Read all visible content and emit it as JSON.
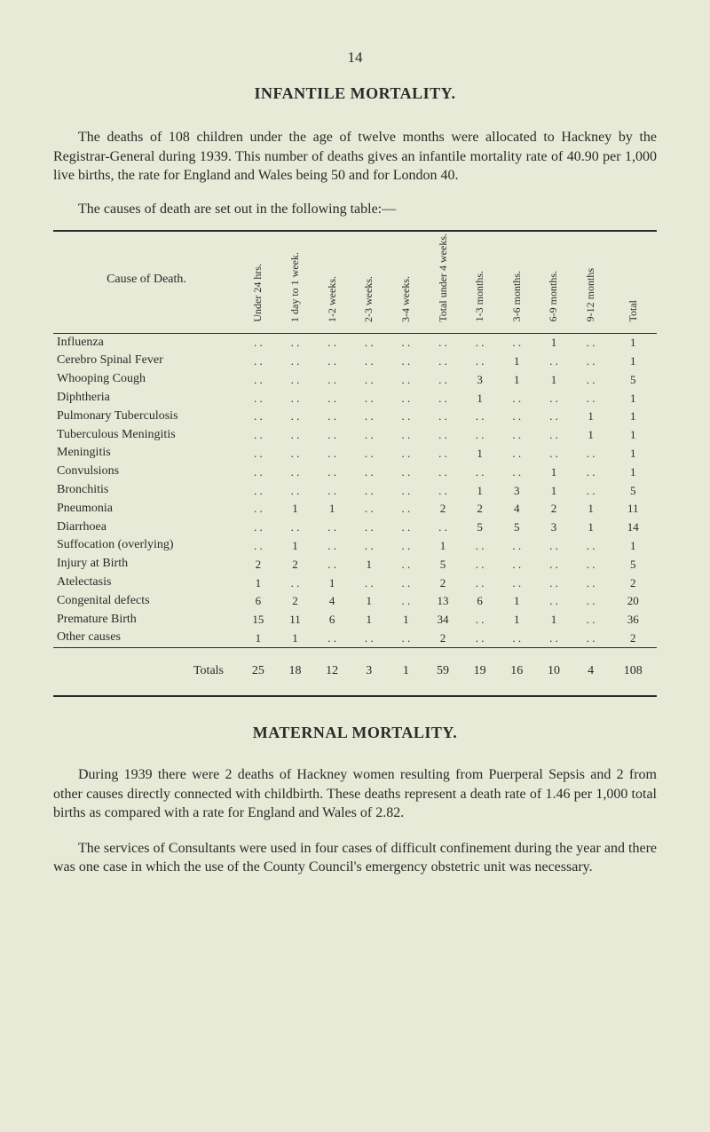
{
  "page_number": "14",
  "title": "INFANTILE MORTALITY.",
  "intro_para": "The deaths of 108 children under the age of twelve months were allocated to Hackney by the Registrar-General during 1939. This number of deaths gives an infantile mortality rate of 40.90 per 1,000 live births, the rate for England and Wales being 50 and for London 40.",
  "table_lead": "The causes of death are set out in the following table:—",
  "table": {
    "type": "table",
    "background_color": "#e8ead8",
    "border_color": "#2a2a28",
    "font_size_body": 13,
    "font_size_header": 12,
    "placeholder": ". .",
    "columns": [
      "Cause of Death.",
      "Under 24 hrs.",
      "1 day to 1 week.",
      "1-2 weeks.",
      "2-3 weeks.",
      "3-4 weeks.",
      "Total under 4 weeks.",
      "1-3 months.",
      "3-6 months.",
      "6-9 months.",
      "9-12 months",
      "Total"
    ],
    "rows": [
      {
        "cause": "Influenza",
        "v": [
          "",
          "",
          "",
          "",
          "",
          "",
          "",
          "",
          "1",
          "",
          "1"
        ]
      },
      {
        "cause": "Cerebro Spinal Fever",
        "v": [
          "",
          "",
          "",
          "",
          "",
          "",
          "",
          "1",
          "",
          "",
          "1"
        ]
      },
      {
        "cause": "Whooping Cough",
        "v": [
          "",
          "",
          "",
          "",
          "",
          "",
          "3",
          "1",
          "1",
          "",
          "5"
        ]
      },
      {
        "cause": "Diphtheria",
        "v": [
          "",
          "",
          "",
          "",
          "",
          "",
          "1",
          "",
          "",
          "",
          "1"
        ]
      },
      {
        "cause": "Pulmonary Tuberculosis",
        "v": [
          "",
          "",
          "",
          "",
          "",
          "",
          "",
          "",
          "",
          "1",
          "1"
        ]
      },
      {
        "cause": "Tuberculous Meningitis",
        "v": [
          "",
          "",
          "",
          "",
          "",
          "",
          "",
          "",
          "",
          "1",
          "1"
        ]
      },
      {
        "cause": "Meningitis",
        "v": [
          "",
          "",
          "",
          "",
          "",
          "",
          "1",
          "",
          "",
          "",
          "1"
        ]
      },
      {
        "cause": "Convulsions",
        "v": [
          "",
          "",
          "",
          "",
          "",
          "",
          "",
          "",
          "1",
          "",
          "1"
        ]
      },
      {
        "cause": "Bronchitis",
        "v": [
          "",
          "",
          "",
          "",
          "",
          "",
          "1",
          "3",
          "1",
          "",
          "5"
        ]
      },
      {
        "cause": "Pneumonia",
        "v": [
          "",
          "1",
          "1",
          "",
          "",
          "2",
          "2",
          "4",
          "2",
          "1",
          "11"
        ]
      },
      {
        "cause": "Diarrhoea",
        "v": [
          "",
          "",
          "",
          "",
          "",
          "",
          "5",
          "5",
          "3",
          "1",
          "14"
        ]
      },
      {
        "cause": "Suffocation (overlying)",
        "v": [
          "",
          "1",
          "",
          "",
          "",
          "1",
          "",
          "",
          "",
          "",
          "1"
        ]
      },
      {
        "cause": "Injury at Birth",
        "v": [
          "2",
          "2",
          "",
          "1",
          "",
          "5",
          "",
          "",
          "",
          "",
          "5"
        ]
      },
      {
        "cause": "Atelectasis",
        "v": [
          "1",
          "",
          "1",
          "",
          "",
          "2",
          "",
          "",
          "",
          "",
          "2"
        ]
      },
      {
        "cause": "Congenital defects",
        "v": [
          "6",
          "2",
          "4",
          "1",
          "",
          "13",
          "6",
          "1",
          "",
          "",
          "20"
        ]
      },
      {
        "cause": "Premature Birth",
        "v": [
          "15",
          "11",
          "6",
          "1",
          "1",
          "34",
          "",
          "1",
          "1",
          "",
          "36"
        ]
      },
      {
        "cause": "Other causes",
        "v": [
          "1",
          "1",
          "",
          "",
          "",
          "2",
          "",
          "",
          "",
          "",
          "2"
        ]
      }
    ],
    "totals": {
      "label": "Totals",
      "v": [
        "25",
        "18",
        "12",
        "3",
        "1",
        "59",
        "19",
        "16",
        "10",
        "4",
        "108"
      ]
    }
  },
  "sub_title": "MATERNAL MORTALITY.",
  "maternal_p1": "During 1939 there were 2 deaths of Hackney women resulting from Puerperal Sepsis and 2 from other causes directly connected with childbirth. These deaths represent a death rate of 1.46 per 1,000 total births as compared with a rate for England and Wales of 2.82.",
  "maternal_p2": "The services of Consultants were used in four cases of difficult confinement during the year and there was one case in which the use of the County Council's emergency obstetric unit was necessary."
}
